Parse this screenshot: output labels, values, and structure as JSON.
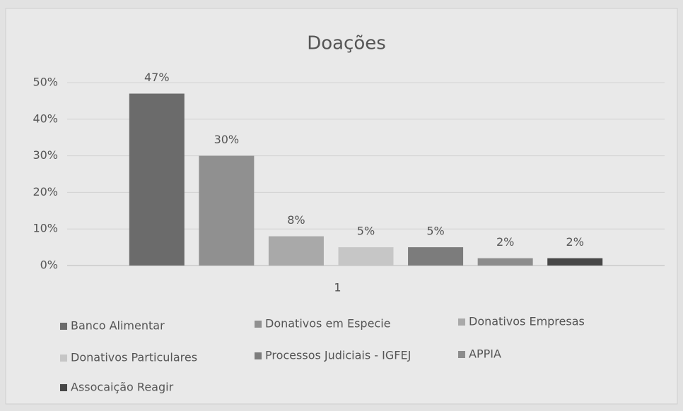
{
  "chart_data": {
    "type": "bar",
    "title": "Doações",
    "categories": [
      "1"
    ],
    "series": [
      {
        "name": "Banco Alimentar",
        "color": "#6b6b6b",
        "values": [
          47
        ],
        "value_labels": [
          "47%"
        ]
      },
      {
        "name": "Donativos em Especie",
        "color": "#909090",
        "values": [
          30
        ],
        "value_labels": [
          "30%"
        ]
      },
      {
        "name": "Donativos Empresas",
        "color": "#a9a9a9",
        "values": [
          8
        ],
        "value_labels": [
          "8%"
        ]
      },
      {
        "name": "Donativos Particulares",
        "color": "#c6c6c6",
        "values": [
          5
        ],
        "value_labels": [
          "5%"
        ]
      },
      {
        "name": "Processos Judiciais - IGFEJ",
        "color": "#7c7c7c",
        "values": [
          5
        ],
        "value_labels": [
          "5%"
        ]
      },
      {
        "name": "APPIA",
        "color": "#8c8c8c",
        "values": [
          2
        ],
        "value_labels": [
          "2%"
        ]
      },
      {
        "name": "Assocaição Reagir",
        "color": "#474747",
        "values": [
          2
        ],
        "value_labels": [
          "2%"
        ]
      }
    ],
    "ylim": [
      0,
      50
    ],
    "yticks": [
      {
        "value": 0,
        "label": "0%"
      },
      {
        "value": 10,
        "label": "10%"
      },
      {
        "value": 20,
        "label": "20%"
      },
      {
        "value": 30,
        "label": "30%"
      },
      {
        "value": 40,
        "label": "40%"
      },
      {
        "value": 50,
        "label": "50%"
      }
    ],
    "grid": true,
    "legend": "bottom"
  }
}
